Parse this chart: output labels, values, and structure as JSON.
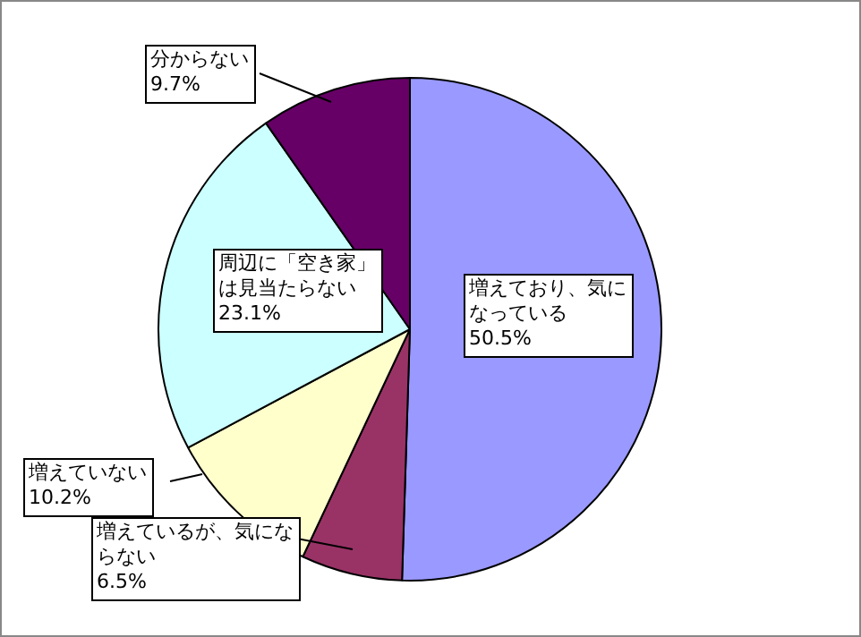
{
  "chart_data": {
    "type": "pie",
    "categories": [
      "増えており、気になっている",
      "増えているが、気にならない",
      "増えていない",
      "周辺に「空き家」は見当たらない",
      "分からない"
    ],
    "values": [
      50.5,
      6.5,
      10.2,
      23.1,
      9.7
    ],
    "value_labels": [
      "50.5%",
      "6.5%",
      "10.2%",
      "23.1%",
      "9.7%"
    ],
    "colors": [
      "#9999ff",
      "#993366",
      "#ffffcc",
      "#ccffff",
      "#660066"
    ],
    "legend": false
  }
}
